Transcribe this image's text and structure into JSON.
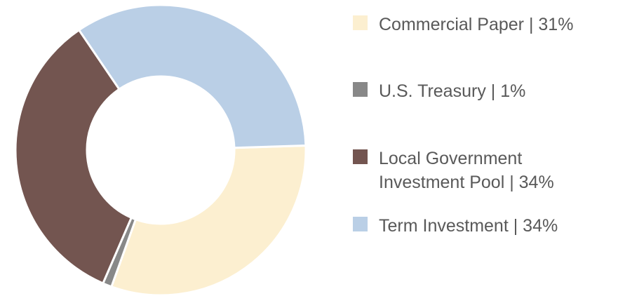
{
  "chart_data": {
    "type": "donut",
    "categories": [
      "Commercial Paper | 31%",
      "U.S. Treasury | 1%",
      "Local Government Investment Pool | 34%",
      "Term Investment | 34%"
    ],
    "values": [
      31,
      1,
      34,
      34
    ],
    "colors": [
      "#fcefd0",
      "#888888",
      "#735550",
      "#bacfe6"
    ],
    "legend": "right"
  }
}
